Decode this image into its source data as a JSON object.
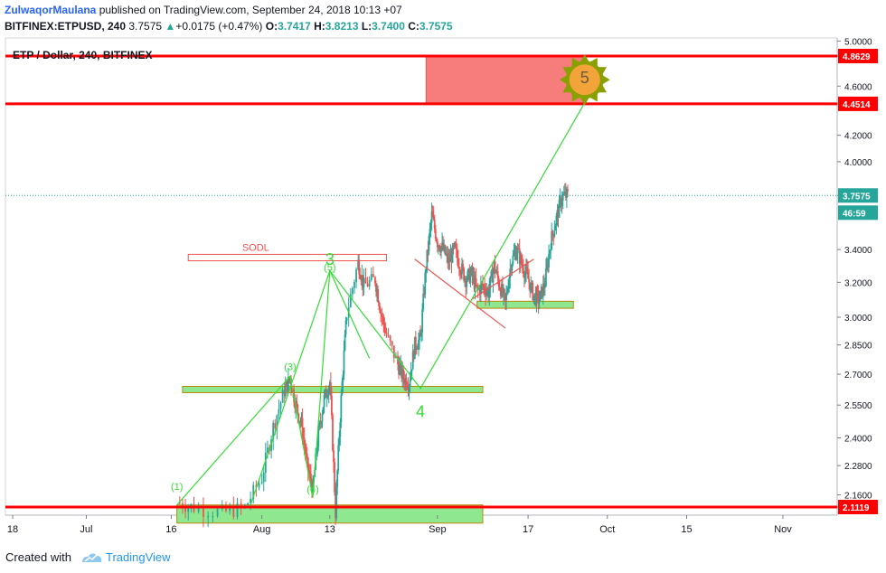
{
  "header": {
    "author": "ZulwaqorMaulana",
    "published_text": "published on TradingView.com, September 24, 2018 10:13 +07",
    "symbol": "BITFINEX:ETPUSD, 240",
    "last": "3.7575",
    "change": "+0.0175 (+0.47%)",
    "o_label": "O:",
    "o_value": "3.7417",
    "h_label": "H:",
    "h_value": "3.8213",
    "l_label": "L:",
    "l_value": "3.7400",
    "c_label": "C:",
    "c_value": "3.7575"
  },
  "footer": {
    "created_with": "Created with",
    "brand": "TradingView"
  },
  "colors": {
    "up": "#26a69a",
    "down": "#ef5350",
    "resistance": "#ff0000",
    "zone_red": "#f77d7d",
    "zone_green": "#8fe88f",
    "wave": "#33dd33",
    "sun": "#8aa000"
  },
  "chart_data": {
    "type": "candlestick",
    "title": "ETP / Dollar, 240, BITFINEX",
    "y_scale": "log",
    "y_ticks": [
      "5.0000",
      "4.8629",
      "4.6000",
      "4.4514",
      "4.2000",
      "4.0000",
      "3.7575",
      "3.4000",
      "3.2000",
      "3.0000",
      "2.8500",
      "2.7000",
      "2.5500",
      "2.4000",
      "2.2800",
      "2.1600",
      "2.1119"
    ],
    "x_ticks": [
      {
        "label": "18",
        "date": "2018-06-18"
      },
      {
        "label": "Jul",
        "date": "2018-07-01"
      },
      {
        "label": "16",
        "date": "2018-07-16"
      },
      {
        "label": "Aug",
        "date": "2018-08-01"
      },
      {
        "label": "13",
        "date": "2018-08-13"
      },
      {
        "label": "Sep",
        "date": "2018-09-01"
      },
      {
        "label": "17",
        "date": "2018-09-17"
      },
      {
        "label": "Oct",
        "date": "2018-10-01"
      },
      {
        "label": "15",
        "date": "2018-10-15"
      },
      {
        "label": "Nov",
        "date": "2018-11-01"
      }
    ],
    "price_badges": [
      {
        "value": "4.8629",
        "price": 4.8629,
        "kind": "resistance"
      },
      {
        "value": "4.4514",
        "price": 4.4514,
        "kind": "resistance"
      },
      {
        "value": "3.7575",
        "price": 3.7575,
        "kind": "last"
      },
      {
        "value": "46:59",
        "price": 3.64,
        "kind": "countdown"
      },
      {
        "value": "2.1119",
        "price": 2.1119,
        "kind": "resistance"
      }
    ],
    "horizontal_lines": [
      4.8629,
      4.4514,
      2.1119
    ],
    "last_price": 3.7575,
    "zones": [
      {
        "from": "2018-08-30",
        "to": "2018-09-27",
        "low": 4.4514,
        "high": 4.8629,
        "color": "red"
      },
      {
        "label": "SODL",
        "from": "2018-07-19",
        "to": "2018-08-23",
        "low": 3.33,
        "high": 3.37,
        "color": "outline-red"
      },
      {
        "from": "2018-07-18",
        "to": "2018-09-09",
        "low": 2.61,
        "high": 2.64,
        "color": "green"
      },
      {
        "from": "2018-09-08",
        "to": "2018-09-25",
        "low": 3.05,
        "high": 3.09,
        "color": "green"
      },
      {
        "from": "2018-07-17",
        "to": "2018-09-09",
        "low": 2.05,
        "high": 2.12,
        "color": "green"
      }
    ],
    "wave_labels": [
      {
        "text": "(1)",
        "date": "2018-07-17",
        "price": 2.18,
        "size": "small"
      },
      {
        "text": "(3)",
        "date": "2018-08-06",
        "price": 2.72,
        "size": "small"
      },
      {
        "text": "(4)",
        "date": "2018-08-10",
        "price": 2.17,
        "size": "small"
      },
      {
        "text": "(5)",
        "date": "2018-08-13",
        "price": 3.27,
        "size": "small"
      },
      {
        "text": "3",
        "date": "2018-08-13",
        "price": 3.34,
        "size": "large"
      },
      {
        "text": "4",
        "date": "2018-08-29",
        "price": 2.52,
        "size": "large"
      },
      {
        "text": "5",
        "date": "2018-09-27",
        "price": 4.67,
        "size": "large"
      }
    ],
    "wave_path": [
      {
        "date": "2018-07-17",
        "price": 2.12
      },
      {
        "date": "2018-08-06",
        "price": 2.69
      },
      {
        "date": "2018-08-10",
        "price": 2.15
      },
      {
        "date": "2018-08-13",
        "price": 3.27
      },
      {
        "date": "2018-08-29",
        "price": 2.63
      },
      {
        "date": "2018-09-27",
        "price": 4.46
      }
    ],
    "wave_path_extra": [
      {
        "date": "2018-07-30",
        "price": 2.12
      },
      {
        "date": "2018-08-13",
        "price": 3.27
      },
      {
        "date": "2018-08-20",
        "price": 2.78
      }
    ],
    "trendlines": [
      {
        "from": {
          "date": "2018-08-28",
          "price": 3.34
        },
        "to": {
          "date": "2018-09-13",
          "price": 2.94
        }
      },
      {
        "from": {
          "date": "2018-09-07",
          "price": 3.1
        },
        "to": {
          "date": "2018-09-18",
          "price": 3.34
        }
      }
    ],
    "price_path": [
      [
        "2018-07-17",
        2.13
      ],
      [
        "2018-07-20",
        2.11
      ],
      [
        "2018-07-25",
        2.09
      ],
      [
        "2018-07-29",
        2.11
      ],
      [
        "2018-08-01",
        2.23
      ],
      [
        "2018-08-03",
        2.45
      ],
      [
        "2018-08-05",
        2.62
      ],
      [
        "2018-08-06",
        2.68
      ],
      [
        "2018-08-07",
        2.55
      ],
      [
        "2018-08-08",
        2.46
      ],
      [
        "2018-08-09",
        2.28
      ],
      [
        "2018-08-10",
        2.18
      ],
      [
        "2018-08-11",
        2.42
      ],
      [
        "2018-08-12",
        2.58
      ],
      [
        "2018-08-13",
        2.66
      ],
      [
        "2018-08-14",
        2.09
      ],
      [
        "2018-08-15",
        2.58
      ],
      [
        "2018-08-16",
        3.02
      ],
      [
        "2018-08-18",
        3.32
      ],
      [
        "2018-08-19",
        3.18
      ],
      [
        "2018-08-21",
        3.22
      ],
      [
        "2018-08-22",
        3.03
      ],
      [
        "2018-08-23",
        2.9
      ],
      [
        "2018-08-25",
        2.75
      ],
      [
        "2018-08-26",
        2.68
      ],
      [
        "2018-08-27",
        2.66
      ],
      [
        "2018-08-28",
        2.85
      ],
      [
        "2018-08-29",
        2.88
      ],
      [
        "2018-08-30",
        3.3
      ],
      [
        "2018-08-31",
        3.62
      ],
      [
        "2018-09-01",
        3.45
      ],
      [
        "2018-09-02",
        3.4
      ],
      [
        "2018-09-03",
        3.32
      ],
      [
        "2018-09-04",
        3.4
      ],
      [
        "2018-09-05",
        3.3
      ],
      [
        "2018-09-06",
        3.22
      ],
      [
        "2018-09-07",
        3.25
      ],
      [
        "2018-09-08",
        3.15
      ],
      [
        "2018-09-09",
        3.18
      ],
      [
        "2018-09-10",
        3.14
      ],
      [
        "2018-09-11",
        3.3
      ],
      [
        "2018-09-12",
        3.18
      ],
      [
        "2018-09-13",
        3.08
      ],
      [
        "2018-09-14",
        3.32
      ],
      [
        "2018-09-15",
        3.4
      ],
      [
        "2018-09-16",
        3.3
      ],
      [
        "2018-09-17",
        3.22
      ],
      [
        "2018-09-18",
        3.12
      ],
      [
        "2018-09-19",
        3.1
      ],
      [
        "2018-09-20",
        3.2
      ],
      [
        "2018-09-21",
        3.45
      ],
      [
        "2018-09-22",
        3.6
      ],
      [
        "2018-09-23",
        3.75
      ],
      [
        "2018-09-24",
        3.7575
      ]
    ]
  }
}
